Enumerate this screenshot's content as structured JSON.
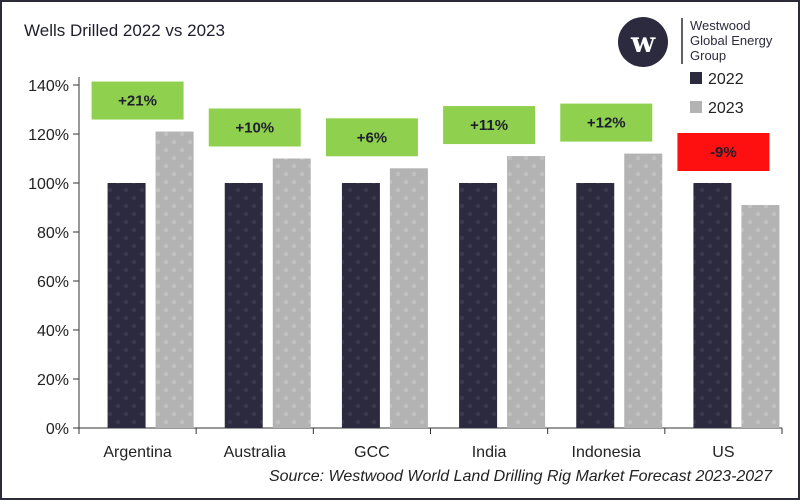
{
  "chart_data": {
    "type": "bar",
    "title": "Wells Drilled 2022 vs 2023",
    "categories": [
      "Argentina",
      "Australia",
      "GCC",
      "India",
      "Indonesia",
      "US"
    ],
    "series": [
      {
        "name": "2022",
        "values": [
          100,
          100,
          100,
          100,
          100,
          100
        ],
        "color": "#2b2a3f"
      },
      {
        "name": "2023",
        "values": [
          121,
          110,
          106,
          111,
          112,
          91
        ],
        "color": "#b3b3b3"
      }
    ],
    "annotations": [
      "+21%",
      "+10%",
      "+6%",
      "+11%",
      "+12%",
      "-9%"
    ],
    "annotation_colors": [
      "#8fd14f",
      "#8fd14f",
      "#8fd14f",
      "#8fd14f",
      "#8fd14f",
      "#ff1010"
    ],
    "ylim": [
      0,
      140
    ],
    "yticks": [
      0,
      20,
      40,
      60,
      80,
      100,
      120,
      140
    ],
    "ytick_suffix": "%",
    "legend_position": "top-right",
    "grid": false
  },
  "brand": {
    "name_lines": [
      "Westwood",
      "Global Energy",
      "Group"
    ],
    "logo_letter": "w"
  },
  "source": "Source: Westwood World Land Drilling Rig Market Forecast 2023-2027"
}
